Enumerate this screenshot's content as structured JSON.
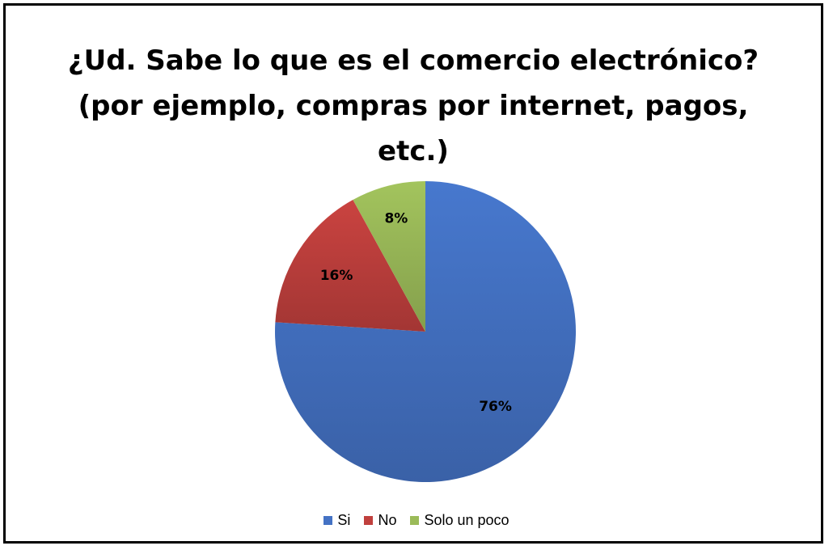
{
  "chart_data": {
    "type": "pie",
    "title_lines": [
      "¿Ud. Sabe lo que es el comercio electrónico?",
      "(por ejemplo, compras por internet, pagos,",
      "etc.)"
    ],
    "categories": [
      "Si",
      "No",
      "Solo un poco"
    ],
    "values": [
      76,
      16,
      8
    ],
    "data_labels": [
      "76%",
      "16%",
      "8%"
    ],
    "colors": [
      "#4472c4",
      "#c0403d",
      "#9bbb59"
    ],
    "legend_position": "bottom"
  }
}
